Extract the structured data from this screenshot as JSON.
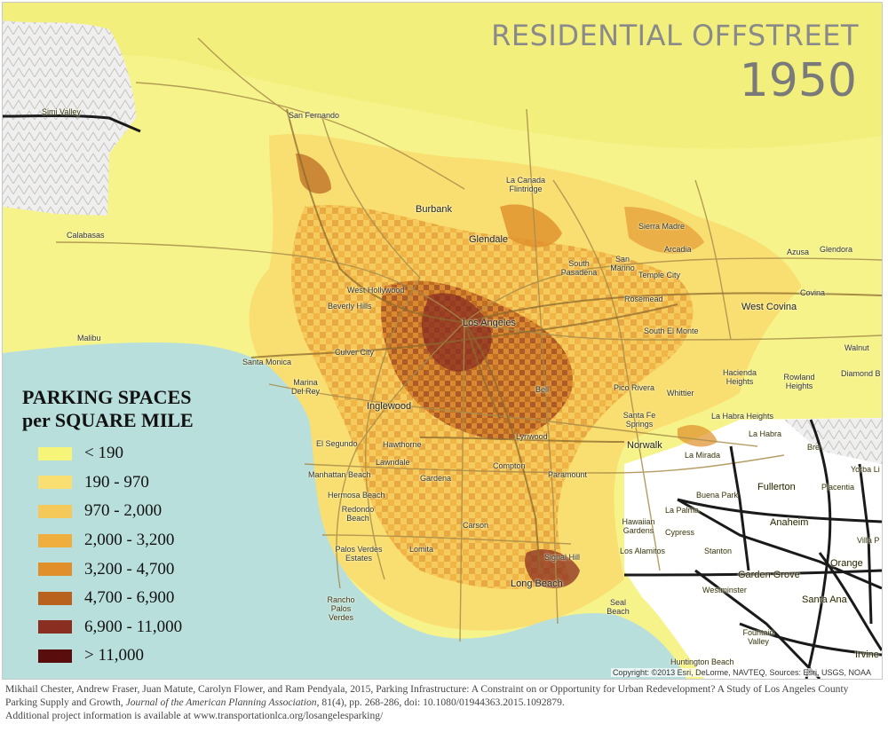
{
  "title": {
    "line1": "RESIDENTIAL OFFSTREET",
    "line2": "1950"
  },
  "legend": {
    "title_line1": "PARKING SPACES",
    "title_line2": "per SQUARE MILE",
    "items": [
      {
        "label": "< 190",
        "color": "#f7f47a"
      },
      {
        "label": "190 - 970",
        "color": "#f9df72"
      },
      {
        "label": "970 - 2,000",
        "color": "#f5c85a"
      },
      {
        "label": "2,000 - 3,200",
        "color": "#efae3d"
      },
      {
        "label": "3,200 - 4,700",
        "color": "#e08f2a"
      },
      {
        "label": "4,700 - 6,900",
        "color": "#b8621d"
      },
      {
        "label": "6,900 - 11,000",
        "color": "#8a2e22"
      },
      {
        "label": "> 11,000",
        "color": "#5a0d0d"
      }
    ]
  },
  "places": [
    {
      "name": "Simi Valley"
    },
    {
      "name": "San Fernando"
    },
    {
      "name": "La Canada Flintridge"
    },
    {
      "name": "Burbank"
    },
    {
      "name": "Glendale"
    },
    {
      "name": "Sierra Madre"
    },
    {
      "name": "Calabasas"
    },
    {
      "name": "Arcadia"
    },
    {
      "name": "Azusa"
    },
    {
      "name": "Glendora"
    },
    {
      "name": "South Pasadena"
    },
    {
      "name": "San Marino"
    },
    {
      "name": "Temple City"
    },
    {
      "name": "West Hollywood"
    },
    {
      "name": "Covina"
    },
    {
      "name": "Rosemead"
    },
    {
      "name": "Beverly Hills"
    },
    {
      "name": "West Covina"
    },
    {
      "name": "Los Angeles"
    },
    {
      "name": "Malibu"
    },
    {
      "name": "South El Monte"
    },
    {
      "name": "Walnut"
    },
    {
      "name": "Culver City"
    },
    {
      "name": "Santa Monica"
    },
    {
      "name": "Hacienda Heights"
    },
    {
      "name": "Rowland Heights"
    },
    {
      "name": "Diamond B"
    },
    {
      "name": "Marina Del Rey"
    },
    {
      "name": "Pico Rivera"
    },
    {
      "name": "Bell"
    },
    {
      "name": "Whittier"
    },
    {
      "name": "Inglewood"
    },
    {
      "name": "Santa Fe Springs"
    },
    {
      "name": "La Habra Heights"
    },
    {
      "name": "La Habra"
    },
    {
      "name": "Bre"
    },
    {
      "name": "El Segundo"
    },
    {
      "name": "Hawthorne"
    },
    {
      "name": "Lynwood"
    },
    {
      "name": "Norwalk"
    },
    {
      "name": "La Mirada"
    },
    {
      "name": "Lawndale"
    },
    {
      "name": "Compton"
    },
    {
      "name": "Yorba Li"
    },
    {
      "name": "Manhattan Beach"
    },
    {
      "name": "Paramount"
    },
    {
      "name": "Fullerton"
    },
    {
      "name": "Placentia"
    },
    {
      "name": "Gardena"
    },
    {
      "name": "Buena Park"
    },
    {
      "name": "Hermosa Beach"
    },
    {
      "name": "Anaheim"
    },
    {
      "name": "Redondo Beach"
    },
    {
      "name": "La Palma"
    },
    {
      "name": "Villa P"
    },
    {
      "name": "Carson"
    },
    {
      "name": "Hawaiian Gardens"
    },
    {
      "name": "Cypress"
    },
    {
      "name": "Palos Verdes Estates"
    },
    {
      "name": "Lomita"
    },
    {
      "name": "Los Alamitos"
    },
    {
      "name": "Stanton"
    },
    {
      "name": "Signal Hill"
    },
    {
      "name": "Orange"
    },
    {
      "name": "Garden Grove"
    },
    {
      "name": "Long Beach"
    },
    {
      "name": "Westminster"
    },
    {
      "name": "Santa Ana"
    },
    {
      "name": "Rancho Palos Verdes"
    },
    {
      "name": "Seal Beach"
    },
    {
      "name": "Fountain Valley"
    },
    {
      "name": "Huntington Beach"
    },
    {
      "name": "Irvine"
    }
  ],
  "copyright": "Copyright: ©2013 Esri, DeLorme, NAVTEQ, Sources: Esri, USGS, NOAA",
  "citation": {
    "part1": "Mikhail Chester, Andrew Fraser, Juan Matute, Carolyn Flower, and Ram Pendyala, 2015, Parking Infrastructure: A Constraint on or Opportunity for Urban Redevelopment? A Study of Los Angeles County Parking Supply and Growth, ",
    "journal": "Journal of the American Planning Association",
    "part2": ", 81(4), pp. 268-286, doi: 10.1080/01944363.2015.1092879.",
    "line3": "Additional project information is available at www.transportationlca.org/losangelesparking/"
  },
  "colors": {
    "ocean": "#b9dfdc",
    "terrain": "#f6f38a",
    "hills": "#e8e8e8",
    "roads_major": "#1a1a1a",
    "roads_minor": "#a88d4a"
  }
}
